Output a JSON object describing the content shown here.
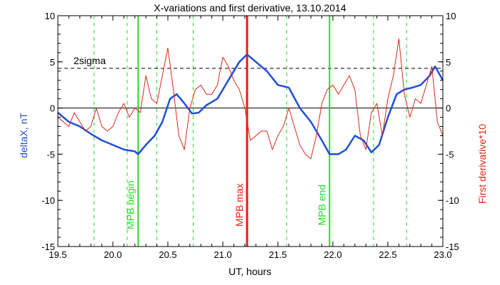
{
  "chart_data": {
    "type": "line",
    "title": "X-variations and first derivative, 13.10.2014",
    "xlabel": "UT, hours",
    "ylabel_left": "deltaX, nT",
    "ylabel_right": "First derivative*10",
    "xlim": [
      19.5,
      23.0
    ],
    "ylim": [
      -15,
      10
    ],
    "x_ticks": [
      "19.5",
      "20.0",
      "20.5",
      "21.0",
      "21.5",
      "22.0",
      "22.5",
      "23.0"
    ],
    "y_ticks": [
      "10",
      "5",
      "0",
      "-5",
      "-10",
      "-15"
    ],
    "y_ticks_right": [
      "10",
      "5",
      "0",
      "-5",
      "-10",
      "-15"
    ],
    "threshold": {
      "label": "2sigma",
      "value": 4.3
    },
    "zero_line": 0,
    "series": [
      {
        "name": "deltaX, nT",
        "color": "#1f4fd6",
        "x": [
          19.5,
          19.6,
          19.7,
          19.8,
          19.9,
          20.0,
          20.1,
          20.2,
          20.23,
          20.3,
          20.38,
          20.45,
          20.52,
          20.58,
          20.65,
          20.72,
          20.78,
          20.85,
          20.95,
          21.05,
          21.15,
          21.22,
          21.3,
          21.4,
          21.5,
          21.6,
          21.7,
          21.8,
          21.9,
          21.97,
          22.05,
          22.12,
          22.2,
          22.28,
          22.35,
          22.42,
          22.5,
          22.58,
          22.65,
          22.72,
          22.8,
          22.88,
          22.93,
          23.0
        ],
        "values": [
          -0.5,
          -1.5,
          -2.0,
          -2.8,
          -3.5,
          -4.0,
          -4.5,
          -4.7,
          -5.0,
          -4.0,
          -3.0,
          -1.5,
          1.0,
          1.5,
          0.5,
          -0.6,
          -0.5,
          0.3,
          1.0,
          3.0,
          5.0,
          5.8,
          5.0,
          4.0,
          2.5,
          2.2,
          0.0,
          -1.5,
          -3.5,
          -5.0,
          -5.0,
          -4.5,
          -3.0,
          -3.5,
          -4.8,
          -4.0,
          -1.0,
          1.5,
          2.0,
          2.2,
          2.5,
          3.5,
          4.5,
          3.0
        ]
      },
      {
        "name": "First derivative*10",
        "color": "#d62a1a",
        "x": [
          19.5,
          19.55,
          19.6,
          19.65,
          19.7,
          19.75,
          19.8,
          19.85,
          19.9,
          19.95,
          20.0,
          20.05,
          20.1,
          20.15,
          20.2,
          20.25,
          20.3,
          20.35,
          20.4,
          20.45,
          20.5,
          20.55,
          20.6,
          20.65,
          20.7,
          20.75,
          20.8,
          20.85,
          20.9,
          20.95,
          21.0,
          21.05,
          21.1,
          21.15,
          21.2,
          21.25,
          21.3,
          21.35,
          21.4,
          21.45,
          21.5,
          21.55,
          21.6,
          21.65,
          21.7,
          21.75,
          21.8,
          21.85,
          21.9,
          21.95,
          22.0,
          22.05,
          22.1,
          22.15,
          22.2,
          22.25,
          22.3,
          22.35,
          22.4,
          22.45,
          22.5,
          22.55,
          22.6,
          22.65,
          22.7,
          22.75,
          22.8,
          22.85,
          22.9,
          22.95,
          23.0
        ],
        "values": [
          -1.0,
          -1.5,
          -2.0,
          -0.5,
          -1.5,
          -2.5,
          -2.0,
          0.0,
          -2.0,
          -2.5,
          -2.0,
          -0.5,
          0.5,
          -1.0,
          0.0,
          -0.5,
          3.5,
          1.0,
          0.5,
          3.5,
          6.5,
          2.0,
          -3.0,
          -4.5,
          0.0,
          2.0,
          2.5,
          1.5,
          1.5,
          2.5,
          5.5,
          4.5,
          3.0,
          2.0,
          0.0,
          -3.5,
          -3.0,
          -2.5,
          -2.5,
          -4.5,
          -3.0,
          -2.0,
          0.0,
          -2.0,
          -4.0,
          -5.0,
          -5.5,
          -3.0,
          0.5,
          2.0,
          2.5,
          1.5,
          2.5,
          3.5,
          2.0,
          -3.0,
          -4.5,
          -0.5,
          0.5,
          -3.0,
          1.0,
          3.5,
          7.5,
          1.5,
          -1.0,
          1.0,
          0.5,
          2.5,
          4.5,
          -1.5,
          -3.0
        ]
      }
    ],
    "vertical_lines": {
      "markers": [
        {
          "x": 20.23,
          "label": "MPB begin",
          "color": "#22dd22"
        },
        {
          "x": 21.22,
          "label": "MPB max",
          "color": "#e8200f"
        },
        {
          "x": 21.97,
          "label": "MPB end",
          "color": "#22dd22"
        }
      ],
      "dashed": {
        "color": "#22dd22",
        "x": [
          19.83,
          20.13,
          20.4,
          20.73,
          21.58,
          22.37,
          22.67
        ]
      }
    },
    "grid": false
  }
}
